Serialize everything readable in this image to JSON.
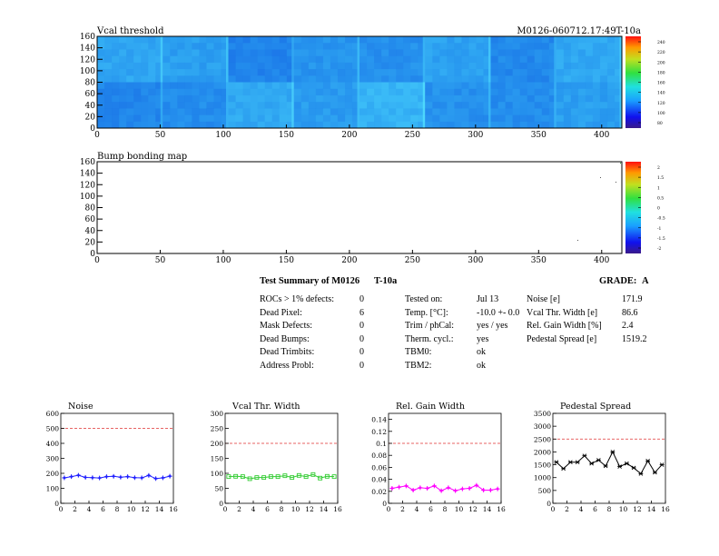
{
  "vcal_map": {
    "title": "Vcal threshold",
    "module_label": "M0126-060712.17:49T-10a",
    "x_ticks": [
      "0",
      "50",
      "100",
      "150",
      "200",
      "250",
      "300",
      "350",
      "400"
    ],
    "y_ticks": [
      "0",
      "20",
      "40",
      "60",
      "80",
      "100",
      "120",
      "140",
      "160"
    ],
    "z_ticks": [
      "80",
      "100",
      "120",
      "140",
      "160",
      "180",
      "200",
      "220",
      "240"
    ],
    "x_range": [
      0,
      416
    ],
    "y_range": [
      0,
      160
    ],
    "z_range": [
      80,
      250
    ]
  },
  "bump_map": {
    "title": "Bump bonding map",
    "x_ticks": [
      "0",
      "50",
      "100",
      "150",
      "200",
      "250",
      "300",
      "350",
      "400"
    ],
    "y_ticks": [
      "0",
      "20",
      "40",
      "60",
      "80",
      "100",
      "120",
      "140",
      "160"
    ],
    "z_ticks": [
      "-2",
      "-1.5",
      "-1",
      "-0.5",
      "0",
      "0.5",
      "1",
      "1.5",
      "2"
    ],
    "x_range": [
      0,
      416
    ],
    "y_range": [
      0,
      160
    ]
  },
  "summary": {
    "title": "Test Summary of M0126",
    "tag": "T-10a",
    "grade_label": "GRADE:",
    "grade_value": "A",
    "defects": [
      {
        "label": "ROCs > 1% defects:",
        "value": "0"
      },
      {
        "label": "Dead Pixel:",
        "value": "6"
      },
      {
        "label": "Mask Defects:",
        "value": "0"
      },
      {
        "label": "Dead Bumps:",
        "value": "0"
      },
      {
        "label": "Dead Trimbits:",
        "value": "0"
      },
      {
        "label": "Address Probl:",
        "value": "0"
      }
    ],
    "conditions": [
      {
        "label": "Tested on:",
        "value": "Jul 13"
      },
      {
        "label": "Temp. [°C]:",
        "value": "-10.0 +- 0.0"
      },
      {
        "label": "Trim / phCal:",
        "value": "yes / yes"
      },
      {
        "label": "Therm. cycl.:",
        "value": "yes"
      },
      {
        "label": "TBM0:",
        "value": "ok"
      },
      {
        "label": "TBM2:",
        "value": "ok"
      }
    ],
    "results": [
      {
        "label": "Noise [e]",
        "value": "171.9"
      },
      {
        "label": "Vcal Thr. Width [e]",
        "value": "86.6"
      },
      {
        "label": "Rel. Gain Width [%]",
        "value": "2.4"
      },
      {
        "label": "Pedestal Spread [e]",
        "value": "1519.2"
      }
    ]
  },
  "chart_data": [
    {
      "type": "line",
      "title": "Noise",
      "x": [
        0,
        1,
        2,
        3,
        4,
        5,
        6,
        7,
        8,
        9,
        10,
        11,
        12,
        13,
        14,
        15
      ],
      "values": [
        170,
        178,
        187,
        173,
        171,
        169,
        178,
        180,
        174,
        178,
        171,
        170,
        186,
        165,
        170,
        181
      ],
      "xlim": [
        0,
        16
      ],
      "ylim": [
        0,
        600
      ],
      "x_ticks": [
        "0",
        "2",
        "4",
        "6",
        "8",
        "10",
        "12",
        "14",
        "16"
      ],
      "y_ticks": [
        "0",
        "100",
        "200",
        "300",
        "400",
        "500",
        "600"
      ],
      "y_tick_vals": [
        0,
        100,
        200,
        300,
        400,
        500,
        600
      ],
      "limit": 500,
      "color": "#2020ff",
      "marker": "cross"
    },
    {
      "type": "line",
      "title": "Vcal Thr. Width",
      "x": [
        0,
        1,
        2,
        3,
        4,
        5,
        6,
        7,
        8,
        9,
        10,
        11,
        12,
        13,
        14,
        15
      ],
      "values": [
        89,
        90,
        89,
        82,
        86,
        86,
        89,
        89,
        92,
        86,
        93,
        89,
        96,
        84,
        90,
        89
      ],
      "xlim": [
        0,
        16
      ],
      "ylim": [
        0,
        300
      ],
      "x_ticks": [
        "0",
        "2",
        "4",
        "6",
        "8",
        "10",
        "12",
        "14",
        "16"
      ],
      "y_ticks": [
        "0",
        "50",
        "100",
        "150",
        "200",
        "250",
        "300"
      ],
      "y_tick_vals": [
        0,
        50,
        100,
        150,
        200,
        250,
        300
      ],
      "limit": 200,
      "color": "#33cc33",
      "marker": "square"
    },
    {
      "type": "line",
      "title": "Rel. Gain Width",
      "x": [
        0,
        1,
        2,
        3,
        4,
        5,
        6,
        7,
        8,
        9,
        10,
        11,
        12,
        13,
        14,
        15
      ],
      "values": [
        0.025,
        0.027,
        0.029,
        0.022,
        0.026,
        0.025,
        0.029,
        0.021,
        0.026,
        0.021,
        0.024,
        0.025,
        0.03,
        0.022,
        0.022,
        0.024
      ],
      "xlim": [
        0,
        16
      ],
      "ylim": [
        0,
        0.15
      ],
      "x_ticks": [
        "0",
        "2",
        "4",
        "6",
        "8",
        "10",
        "12",
        "14",
        "16"
      ],
      "y_ticks": [
        "0",
        "0.02",
        "0.04",
        "0.06",
        "0.08",
        "0.1",
        "0.12",
        "0.14"
      ],
      "y_tick_vals": [
        0,
        0.02,
        0.04,
        0.06,
        0.08,
        0.1,
        0.12,
        0.14
      ],
      "limit": 0.1,
      "color": "#ff00ff",
      "marker": "cross"
    },
    {
      "type": "line",
      "title": "Pedestal Spread",
      "x": [
        0,
        1,
        2,
        3,
        4,
        5,
        6,
        7,
        8,
        9,
        10,
        11,
        12,
        13,
        14,
        15
      ],
      "values": [
        1600,
        1350,
        1600,
        1600,
        1850,
        1550,
        1680,
        1450,
        2000,
        1430,
        1550,
        1380,
        1150,
        1650,
        1200,
        1500
      ],
      "xlim": [
        0,
        16
      ],
      "ylim": [
        0,
        3500
      ],
      "x_ticks": [
        "0",
        "2",
        "4",
        "6",
        "8",
        "10",
        "12",
        "14",
        "16"
      ],
      "y_ticks": [
        "0",
        "500",
        "1000",
        "1500",
        "2000",
        "2500",
        "3000",
        "3500"
      ],
      "y_tick_vals": [
        0,
        500,
        1000,
        1500,
        2000,
        2500,
        3000,
        3500
      ],
      "limit": 2500,
      "color": "#000000",
      "marker": "star"
    }
  ]
}
